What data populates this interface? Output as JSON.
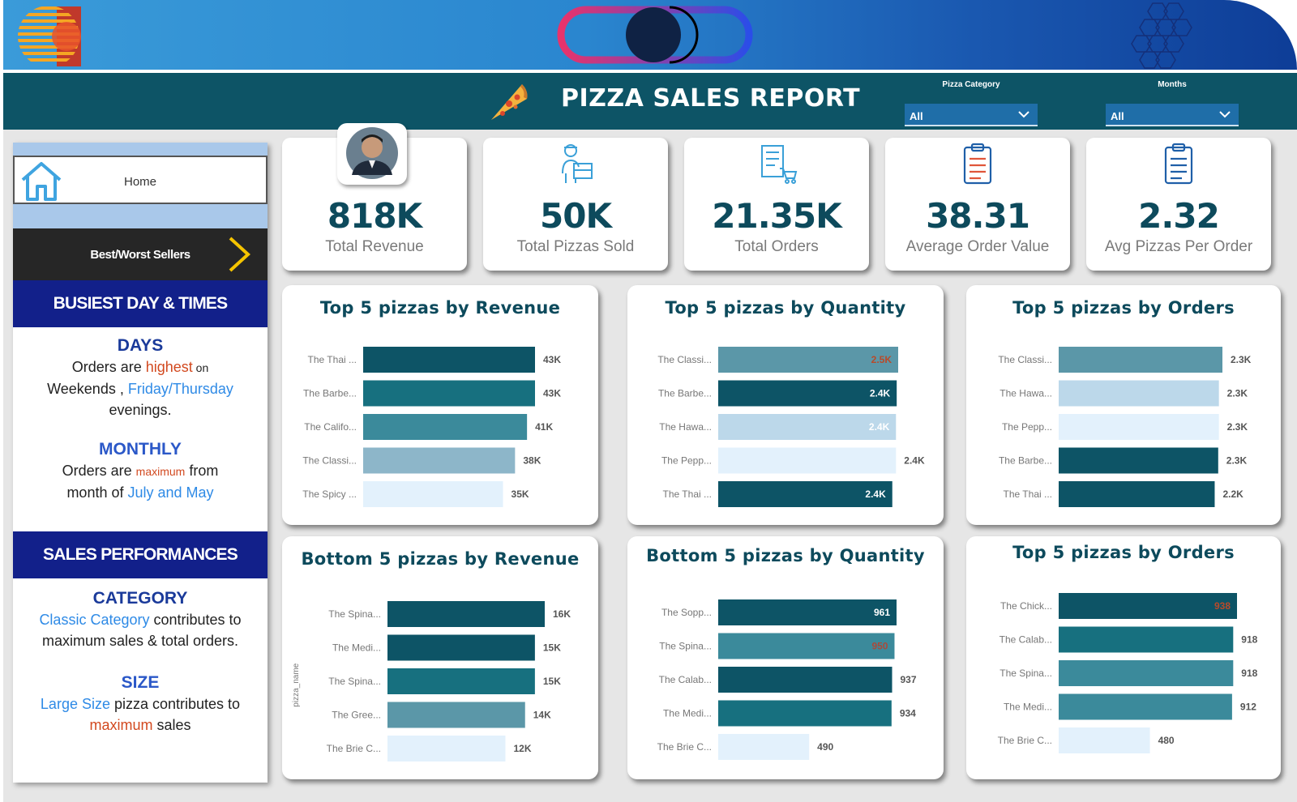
{
  "header": {
    "title": "PIZZA SALES REPORT",
    "slicers": [
      {
        "label": "Pizza Category",
        "value": "All"
      },
      {
        "label": "Months",
        "value": "All"
      }
    ]
  },
  "nav": {
    "home_label": "Home",
    "best_worst_label": "Best/Worst Sellers"
  },
  "busiest": {
    "heading": "BUSIEST DAY & TIMES",
    "days_heading": "DAYS",
    "days_text": {
      "a": "Orders are ",
      "b": "highest",
      "c": " on",
      "d": "Weekends , ",
      "e": "Friday/Thursday",
      "f": "evenings."
    },
    "monthly_heading": "MONTHLY",
    "monthly_text": {
      "a": "Orders are ",
      "b": "maximum",
      "c": " from",
      "d": "month of ",
      "e": "July and May"
    }
  },
  "performance": {
    "heading": "SALES PERFORMANCES",
    "category_heading": "CATEGORY",
    "category_text": {
      "a": "Classic Category",
      "b": " contributes to",
      "c": "maximum sales & total orders."
    },
    "size_heading": "SIZE",
    "size_text": {
      "a": "Large Size",
      "b": " pizza contributes to",
      "c": "maximum",
      "d": " sales"
    }
  },
  "kpis": [
    {
      "value": "818K",
      "label": "Total Revenue",
      "icon": "person-avatar-icon"
    },
    {
      "value": "50K",
      "label": "Total Pizzas Sold",
      "icon": "delivery-person-icon"
    },
    {
      "value": "21.35K",
      "label": "Total Orders",
      "icon": "order-list-cart-icon"
    },
    {
      "value": "38.31",
      "label": "Average Order Value",
      "icon": "clipboard-icon"
    },
    {
      "value": "2.32",
      "label": "Avg Pizzas Per Order",
      "icon": "clipboard-icon"
    }
  ],
  "colors": {
    "dark_teal": "#0d5466",
    "teal": "#17707f",
    "mid_teal": "#3b8a9b",
    "light_teal": "#5b9aaa",
    "pale_blue": "#8db6c9",
    "lighter_blue": "#bcd8ea",
    "palest_blue": "#e3f1fc"
  },
  "chart_data": [
    {
      "type": "bar",
      "orientation": "horizontal",
      "title": "Top 5 pizzas by Revenue",
      "categories": [
        "The Thai ...",
        "The Barbe...",
        "The Califo...",
        "The Classi...",
        "The Spicy ..."
      ],
      "values": [
        43,
        43,
        41,
        38,
        35
      ],
      "labels": [
        "43K",
        "43K",
        "41K",
        "38K",
        "35K"
      ],
      "label_colors": [
        "#555555",
        "#555555",
        "#555555",
        "#555555",
        "#555555"
      ],
      "bar_colors": [
        "#0d5466",
        "#17707f",
        "#3b8a9b",
        "#8db6c9",
        "#e3f1fc"
      ],
      "xlim": [
        0,
        43
      ]
    },
    {
      "type": "bar",
      "orientation": "horizontal",
      "title": "Top 5 pizzas by Quantity",
      "categories": [
        "The Classi...",
        "The Barbe...",
        "The Hawa...",
        "The Pepp...",
        "The Thai ..."
      ],
      "values": [
        2.45,
        2.43,
        2.42,
        2.42,
        2.37
      ],
      "labels": [
        "2.5K",
        "2.4K",
        "2.4K",
        "2.4K",
        "2.4K"
      ],
      "label_colors": [
        "#b84a2a",
        "#ffffff",
        "#ffffff",
        "#555555",
        "#ffffff"
      ],
      "bar_colors": [
        "#5b97a8",
        "#0d5466",
        "#bcd8ea",
        "#e3f1fc",
        "#0d5466"
      ],
      "xlim": [
        0,
        2.45
      ]
    },
    {
      "type": "bar",
      "orientation": "horizontal",
      "title": "Top 5 pizzas by Orders",
      "categories": [
        "The Classi...",
        "The Hawa...",
        "The Pepp...",
        "The Barbe...",
        "The Thai ..."
      ],
      "values": [
        2.33,
        2.28,
        2.28,
        2.27,
        2.22
      ],
      "labels": [
        "2.3K",
        "2.3K",
        "2.3K",
        "2.3K",
        "2.2K"
      ],
      "label_colors": [
        "#555555",
        "#555555",
        "#555555",
        "#555555",
        "#555555"
      ],
      "bar_colors": [
        "#5b97a8",
        "#bcd8ea",
        "#e3f1fc",
        "#0d5466",
        "#0d5466"
      ],
      "xlim": [
        0,
        2.33
      ]
    },
    {
      "type": "bar",
      "orientation": "horizontal",
      "title": "Bottom 5 pizzas by Revenue",
      "ylabel": "pizza_name",
      "categories": [
        "The Spina...",
        "The Medi...",
        "The Spina...",
        "The Gree...",
        "The Brie C..."
      ],
      "values": [
        16,
        15,
        15,
        14,
        12
      ],
      "labels": [
        "16K",
        "15K",
        "15K",
        "14K",
        "12K"
      ],
      "label_colors": [
        "#555555",
        "#555555",
        "#555555",
        "#555555",
        "#555555"
      ],
      "bar_colors": [
        "#0d5466",
        "#0d5466",
        "#17707f",
        "#5b97a8",
        "#e3f1fc"
      ],
      "xlim": [
        0,
        16
      ]
    },
    {
      "type": "bar",
      "orientation": "horizontal",
      "title": "Bottom 5 pizzas by Quantity",
      "categories": [
        "The Sopp...",
        "The Spina...",
        "The Calab...",
        "The Medi...",
        "The Brie C..."
      ],
      "values": [
        961,
        950,
        937,
        934,
        490
      ],
      "labels": [
        "961",
        "950",
        "937",
        "934",
        "490"
      ],
      "label_colors": [
        "#ffffff",
        "#a94a3a",
        "#555555",
        "#555555",
        "#555555"
      ],
      "bar_colors": [
        "#0d5466",
        "#3b8a9b",
        "#0d5466",
        "#17707f",
        "#e3f1fc"
      ],
      "xlim": [
        0,
        961
      ]
    },
    {
      "type": "bar",
      "orientation": "horizontal",
      "title": "Top 5 pizzas by Orders",
      "categories": [
        "The Chick...",
        "The Calab...",
        "The Spina...",
        "The Medi...",
        "The Brie C..."
      ],
      "values": [
        938,
        918,
        918,
        912,
        480
      ],
      "labels": [
        "938",
        "918",
        "918",
        "912",
        "480"
      ],
      "label_colors": [
        "#b84a2a",
        "#555555",
        "#555555",
        "#555555",
        "#555555"
      ],
      "bar_colors": [
        "#0d5466",
        "#17707f",
        "#3b8a9b",
        "#3b8a9b",
        "#e3f1fc"
      ],
      "xlim": [
        0,
        938
      ]
    }
  ]
}
